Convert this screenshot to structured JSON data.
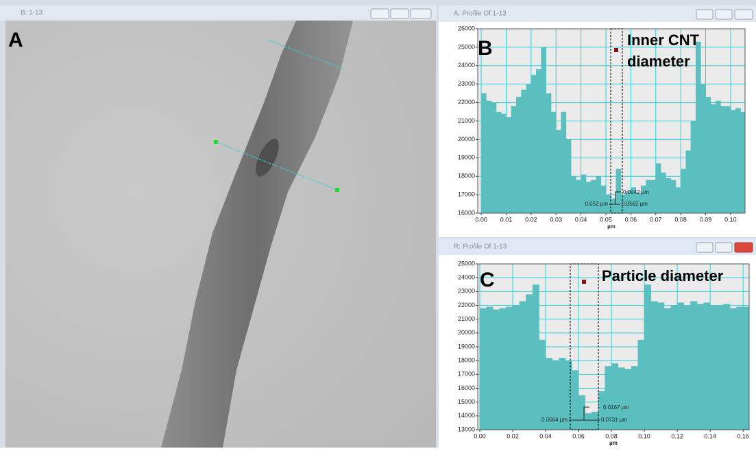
{
  "image_window": {
    "title": "B: 1-13",
    "label": "A"
  },
  "chart_data": [
    {
      "type": "bar",
      "window_title": "A: Profile Of 1-13",
      "label": "B",
      "title_lines": [
        "Inner CNT",
        "diameter"
      ],
      "annotations": [
        "0.0042 µm",
        "0.052 µm",
        "0.0562 µm"
      ],
      "x_label": "µm",
      "color": "#5bbfbf",
      "grid": true,
      "x": [
        0,
        0.002,
        0.004,
        0.006,
        0.008,
        0.01,
        0.012,
        0.014,
        0.016,
        0.018,
        0.02,
        0.022,
        0.024,
        0.026,
        0.028,
        0.03,
        0.032,
        0.034,
        0.036,
        0.038,
        0.04,
        0.042,
        0.044,
        0.046,
        0.048,
        0.05,
        0.052,
        0.054,
        0.056,
        0.058,
        0.06,
        0.062,
        0.064,
        0.066,
        0.068,
        0.07,
        0.072,
        0.074,
        0.076,
        0.078,
        0.08,
        0.082,
        0.084,
        0.086,
        0.088,
        0.09,
        0.092,
        0.094,
        0.096,
        0.098,
        0.1,
        0.102,
        0.104,
        0.106
      ],
      "values": [
        22500,
        22100,
        22000,
        21500,
        21400,
        21200,
        21800,
        22300,
        22700,
        23000,
        23500,
        23800,
        25000,
        22500,
        21500,
        20500,
        21500,
        20000,
        18000,
        17800,
        18100,
        17700,
        17800,
        18000,
        17500,
        17000,
        16800,
        18400,
        17000,
        17200,
        17400,
        17100,
        17500,
        17800,
        17800,
        18700,
        18200,
        17900,
        17800,
        17400,
        18400,
        19400,
        21000,
        25300,
        23000,
        22300,
        21900,
        22100,
        21800,
        21800,
        21600,
        21700,
        21500,
        21500
      ],
      "xlim": [
        -0.0014,
        0.1058
      ],
      "ylim": [
        16000,
        26000
      ],
      "xticks": [
        {
          "value": 0,
          "label": "0.00"
        },
        {
          "value": 0.01,
          "label": "0.01"
        },
        {
          "value": 0.02,
          "label": "0.02"
        },
        {
          "value": 0.03,
          "label": "0.03"
        },
        {
          "value": 0.04,
          "label": "0.04"
        },
        {
          "value": 0.05,
          "label": "0.05"
        },
        {
          "value": 0.06,
          "label": "0.06"
        },
        {
          "value": 0.07,
          "label": "0.07"
        },
        {
          "value": 0.08,
          "label": "0.08"
        },
        {
          "value": 0.09,
          "label": "0.09"
        },
        {
          "value": 0.1,
          "label": "0.10"
        }
      ],
      "yticks": [
        16000,
        17000,
        18000,
        19000,
        20000,
        21000,
        22000,
        23000,
        24000,
        25000,
        26000
      ]
    },
    {
      "type": "bar",
      "window_title": "R: Profile Of 1-13",
      "label": "C",
      "title_lines": [
        "Particle diameter"
      ],
      "annotations": [
        "0.0167 µm",
        "0.0564 µm",
        "0.0731 µm"
      ],
      "x_label": "µm",
      "color": "#5bbfbf",
      "grid": true,
      "x": [
        0,
        0.004,
        0.008,
        0.012,
        0.016,
        0.02,
        0.024,
        0.028,
        0.032,
        0.036,
        0.04,
        0.044,
        0.048,
        0.052,
        0.056,
        0.06,
        0.064,
        0.068,
        0.072,
        0.076,
        0.08,
        0.084,
        0.088,
        0.092,
        0.096,
        0.1,
        0.104,
        0.108,
        0.112,
        0.116,
        0.12,
        0.124,
        0.128,
        0.132,
        0.136,
        0.14,
        0.144,
        0.148,
        0.152,
        0.156,
        0.16,
        0.164
      ],
      "values": [
        21800,
        21900,
        21700,
        21800,
        21900,
        22000,
        22300,
        22800,
        23500,
        19500,
        18200,
        18000,
        18200,
        18000,
        17300,
        15500,
        14200,
        14300,
        15800,
        17600,
        17800,
        17500,
        17400,
        17600,
        19500,
        23500,
        22300,
        22200,
        21800,
        22000,
        22200,
        22000,
        22300,
        22100,
        22200,
        22000,
        22000,
        22100,
        21800,
        21900,
        21900,
        21700
      ],
      "xlim": [
        -0.00125,
        0.1637
      ],
      "ylim": [
        13000,
        25000
      ],
      "xticks": [
        {
          "value": 0,
          "label": "0.00"
        },
        {
          "value": 0.02,
          "label": "0.02"
        },
        {
          "value": 0.04,
          "label": "0.04"
        },
        {
          "value": 0.06,
          "label": "0.06"
        },
        {
          "value": 0.08,
          "label": "0.08"
        },
        {
          "value": 0.1,
          "label": "0.10"
        },
        {
          "value": 0.12,
          "label": "0.12"
        },
        {
          "value": 0.14,
          "label": "0.14"
        },
        {
          "value": 0.16,
          "label": "0.16"
        }
      ],
      "yticks": [
        13000,
        14000,
        15000,
        16000,
        17000,
        18000,
        19000,
        20000,
        21000,
        22000,
        23000,
        24000,
        25000
      ]
    }
  ]
}
